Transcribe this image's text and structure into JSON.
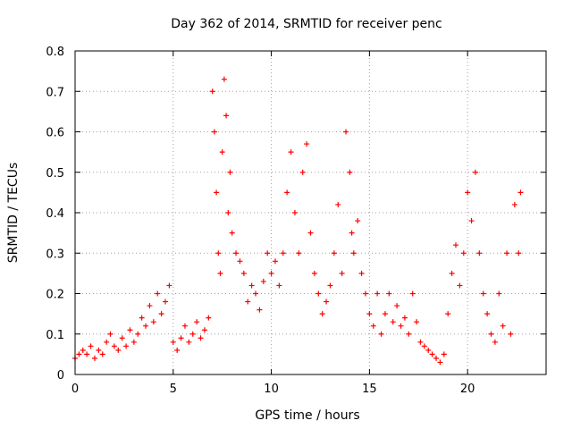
{
  "chart_data": {
    "type": "scatter",
    "title": "Day 362 of 2014, SRMTID for receiver penc",
    "xlabel": "GPS time / hours",
    "ylabel": "SRMTID / TECUs",
    "xlim": [
      0,
      24
    ],
    "ylim": [
      0,
      0.8
    ],
    "xticks": [
      0,
      5,
      10,
      15,
      20
    ],
    "yticks": [
      0,
      0.1,
      0.2,
      0.3,
      0.4,
      0.5,
      0.6,
      0.7,
      0.8
    ],
    "grid": true,
    "marker": "plus",
    "color": "#ff0000",
    "series": [
      {
        "name": "penc",
        "x": [
          0.0,
          0.2,
          0.4,
          0.6,
          0.8,
          1.0,
          1.2,
          1.4,
          1.6,
          1.8,
          2.0,
          2.2,
          2.4,
          2.6,
          2.8,
          3.0,
          3.2,
          3.4,
          3.6,
          3.8,
          4.0,
          4.2,
          4.4,
          4.6,
          4.8,
          5.0,
          5.2,
          5.4,
          5.6,
          5.8,
          6.0,
          6.2,
          6.4,
          6.6,
          6.8,
          7.0,
          7.1,
          7.2,
          7.3,
          7.4,
          7.5,
          7.6,
          7.7,
          7.8,
          7.9,
          8.0,
          8.2,
          8.4,
          8.6,
          8.8,
          9.0,
          9.2,
          9.4,
          9.6,
          9.8,
          10.0,
          10.2,
          10.4,
          10.6,
          10.8,
          11.0,
          11.2,
          11.4,
          11.6,
          11.8,
          12.0,
          12.2,
          12.4,
          12.6,
          12.8,
          13.0,
          13.2,
          13.4,
          13.6,
          13.8,
          14.0,
          14.1,
          14.2,
          14.4,
          14.6,
          14.8,
          15.0,
          15.2,
          15.4,
          15.6,
          15.8,
          16.0,
          16.2,
          16.4,
          16.6,
          16.8,
          17.0,
          17.2,
          17.4,
          17.6,
          17.8,
          18.0,
          18.2,
          18.4,
          18.6,
          18.8,
          19.0,
          19.2,
          19.4,
          19.6,
          19.8,
          20.0,
          20.2,
          20.4,
          20.6,
          20.8,
          21.0,
          21.2,
          21.4,
          21.6,
          21.8,
          22.0,
          22.2,
          22.4,
          22.6,
          22.7
        ],
        "y": [
          0.04,
          0.05,
          0.06,
          0.05,
          0.07,
          0.04,
          0.06,
          0.05,
          0.08,
          0.1,
          0.07,
          0.06,
          0.09,
          0.07,
          0.11,
          0.08,
          0.1,
          0.14,
          0.12,
          0.17,
          0.13,
          0.2,
          0.15,
          0.18,
          0.22,
          0.08,
          0.06,
          0.09,
          0.12,
          0.08,
          0.1,
          0.13,
          0.09,
          0.11,
          0.14,
          0.7,
          0.6,
          0.45,
          0.3,
          0.25,
          0.55,
          0.73,
          0.64,
          0.4,
          0.5,
          0.35,
          0.3,
          0.28,
          0.25,
          0.18,
          0.22,
          0.2,
          0.16,
          0.23,
          0.3,
          0.25,
          0.28,
          0.22,
          0.3,
          0.45,
          0.55,
          0.4,
          0.3,
          0.5,
          0.57,
          0.35,
          0.25,
          0.2,
          0.15,
          0.18,
          0.22,
          0.3,
          0.42,
          0.25,
          0.6,
          0.5,
          0.35,
          0.3,
          0.38,
          0.25,
          0.2,
          0.15,
          0.12,
          0.2,
          0.1,
          0.15,
          0.2,
          0.13,
          0.17,
          0.12,
          0.14,
          0.1,
          0.2,
          0.13,
          0.08,
          0.07,
          0.06,
          0.05,
          0.04,
          0.03,
          0.05,
          0.15,
          0.25,
          0.32,
          0.22,
          0.3,
          0.45,
          0.38,
          0.5,
          0.3,
          0.2,
          0.15,
          0.1,
          0.08,
          0.2,
          0.12,
          0.3,
          0.1,
          0.42,
          0.3,
          0.45
        ]
      }
    ]
  }
}
